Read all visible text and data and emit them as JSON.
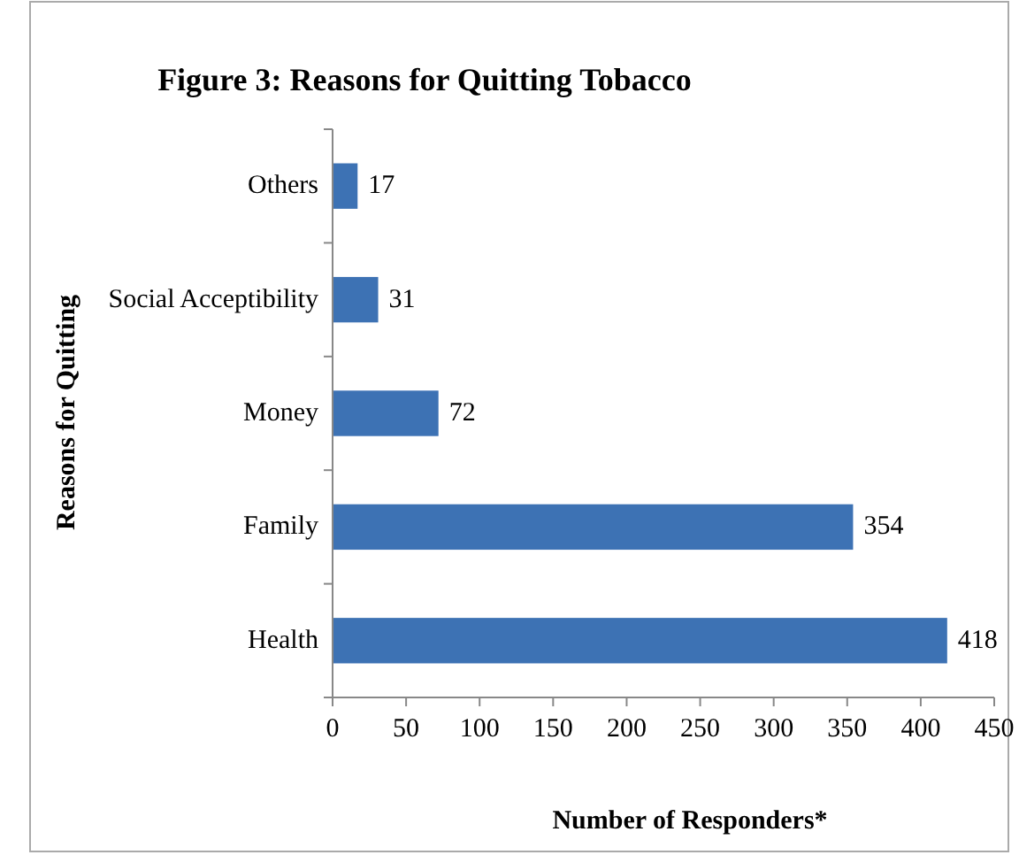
{
  "chart_data": {
    "type": "bar",
    "title": "Figure 3: Reasons for Quitting Tobacco",
    "xlabel": "Number of Responders*",
    "ylabel": "Reasons for Quitting",
    "orientation": "horizontal",
    "categories": [
      "Others",
      "Social Acceptibility",
      "Money",
      "Family",
      "Health"
    ],
    "values": [
      17,
      31,
      72,
      354,
      418
    ],
    "color": "#3d72b4",
    "xlim": [
      0,
      450
    ],
    "xticks": [
      0,
      50,
      100,
      150,
      200,
      250,
      300,
      350,
      400,
      450
    ],
    "data_labels": true,
    "grid": false
  }
}
